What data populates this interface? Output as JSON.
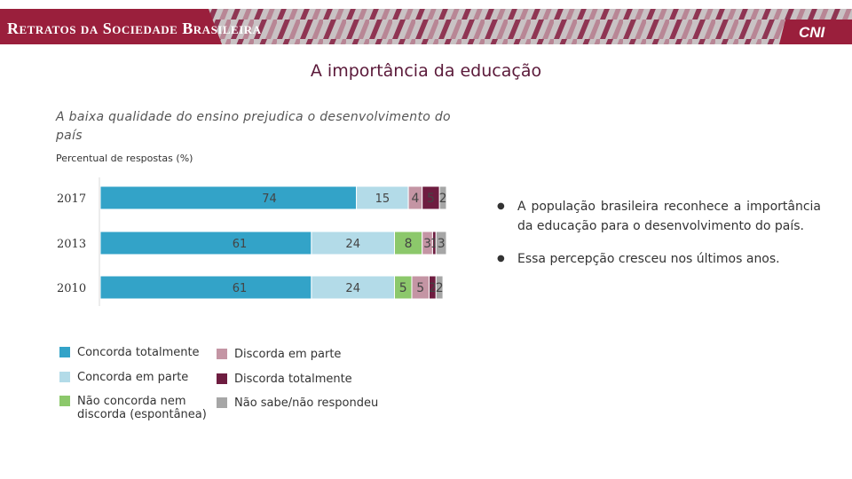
{
  "header": {
    "banner_title": "Retratos da Sociedade Brasileira",
    "logo_text": "CNI",
    "banner_color": "#9a1f3c"
  },
  "page_title": "A importância da educação",
  "subtitle": "A baixa qualidade do ensino prejudica o desenvolvimento do país",
  "unit_label": "Percentual de respostas (%)",
  "chart_data": {
    "type": "bar",
    "orientation": "horizontal",
    "stacked": true,
    "title": "A baixa qualidade do ensino prejudica o desenvolvimento do país",
    "ylabel": "Percentual de respostas (%)",
    "xlim": [
      0,
      100
    ],
    "categories": [
      "2017",
      "2013",
      "2010"
    ],
    "series": [
      {
        "name": "Concorda totalmente",
        "color": "#33a3c8",
        "values": [
          74,
          61,
          61
        ]
      },
      {
        "name": "Concorda em parte",
        "color": "#b3dbe8",
        "values": [
          15,
          24,
          24
        ]
      },
      {
        "name": "Não concorda nem discorda (espontânea)",
        "color": "#8cc86b",
        "values": [
          0,
          8,
          5
        ]
      },
      {
        "name": "Discorda em parte",
        "color": "#c495a4",
        "values": [
          4,
          3,
          5
        ]
      },
      {
        "name": "Discorda totalmente",
        "color": "#6e1d40",
        "values": [
          5,
          1,
          2
        ]
      },
      {
        "name": "Não sabe/não respondeu",
        "color": "#a6a6a6",
        "values": [
          2,
          3,
          2
        ]
      }
    ],
    "legend": [
      {
        "label": "Concorda totalmente",
        "color": "#33a3c8"
      },
      {
        "label": "Discorda em parte",
        "color": "#c495a4"
      },
      {
        "label": "Concorda em parte",
        "color": "#b3dbe8"
      },
      {
        "label": "Discorda totalmente",
        "color": "#6e1d40"
      },
      {
        "label": "Não concorda nem discorda (espontânea)",
        "color": "#8cc86b"
      },
      {
        "label": "Não sabe/não respondeu",
        "color": "#a6a6a6"
      }
    ]
  },
  "bullets": [
    "A população brasileira reconhece a importância da educação para o desenvolvimento do país.",
    "Essa percepção cresceu nos últimos anos."
  ]
}
